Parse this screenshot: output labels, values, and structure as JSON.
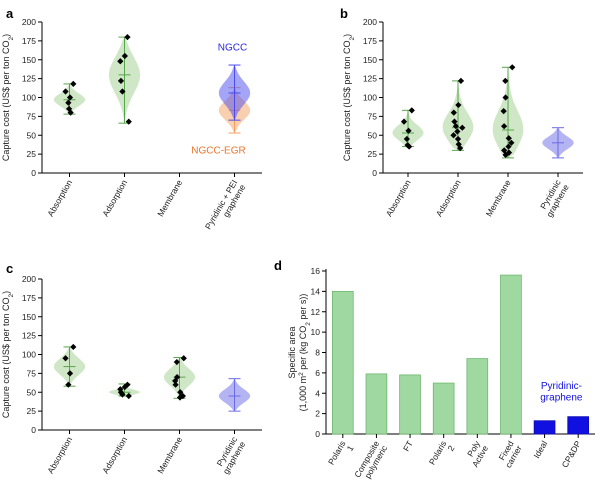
{
  "chart_data": [
    {
      "type": "violin",
      "panel_label": "a",
      "ylabel": "Capture cost (US$ per ton CO",
      "ylabel_sub": "2",
      "ylabel_end": ")",
      "ylim": [
        0,
        200
      ],
      "yticks": [
        0,
        25,
        50,
        75,
        100,
        125,
        150,
        175,
        200
      ],
      "categories": [
        "Absorption",
        "Adsorption",
        "Membrane",
        "Pyridinic + PEI graphene"
      ],
      "series": [
        {
          "category": "Absorption",
          "points": [
            118,
            108,
            100,
            93,
            85,
            80
          ],
          "median": 97,
          "min": 78,
          "max": 118,
          "color": "#9fd08f"
        },
        {
          "category": "Adsorption",
          "points": [
            180,
            155,
            148,
            122,
            108,
            68
          ],
          "median": 130,
          "min": 66,
          "max": 180,
          "color": "#9fd08f"
        },
        {
          "category": "Membrane",
          "points": [],
          "median": null,
          "min": null,
          "max": null,
          "color": "#9fd08f"
        },
        {
          "category": "Pyridinic + PEI graphene",
          "name": "NGCC-EGR",
          "points": [],
          "median": 83,
          "min": 53,
          "max": 113,
          "color": "#f2a060"
        },
        {
          "category": "Pyridinic + PEI graphene",
          "name": "NGCC",
          "points": [],
          "median": 106,
          "min": 70,
          "max": 143,
          "color": "#4b4bf0"
        }
      ],
      "annotations": [
        {
          "text": "NGCC",
          "color": "#2828e0"
        },
        {
          "text": "NGCC-EGR",
          "color": "#e8762c"
        }
      ]
    },
    {
      "type": "violin",
      "panel_label": "b",
      "ylabel": "Capture cost (US$ per ton CO",
      "ylabel_sub": "2",
      "ylabel_end": ")",
      "ylim": [
        0,
        200
      ],
      "yticks": [
        0,
        25,
        50,
        75,
        100,
        125,
        150,
        175,
        200
      ],
      "categories": [
        "Absorption",
        "Adsorption",
        "Membrane",
        "Pyridinic graphene"
      ],
      "series": [
        {
          "category": "Absorption",
          "points": [
            83,
            68,
            56,
            45,
            37,
            35
          ],
          "median": 53,
          "min": 35,
          "max": 83,
          "color": "#9fd08f"
        },
        {
          "category": "Adsorption",
          "points": [
            122,
            90,
            80,
            68,
            62,
            60,
            55,
            50,
            45,
            38,
            33
          ],
          "median": 60,
          "min": 30,
          "max": 122,
          "color": "#9fd08f"
        },
        {
          "category": "Membrane",
          "points": [
            140,
            122,
            100,
            82,
            62,
            46,
            40,
            35,
            30,
            27,
            24
          ],
          "median": 57,
          "min": 20,
          "max": 140,
          "color": "#9fd08f"
        },
        {
          "category": "Pyridinic graphene",
          "points": [],
          "median": 40,
          "min": 20,
          "max": 60,
          "color": "#6a6ae8"
        }
      ]
    },
    {
      "type": "violin",
      "panel_label": "c",
      "ylabel": "Capture cost (US$ per ton CO",
      "ylabel_sub": "2",
      "ylabel_end": ")",
      "ylim": [
        0,
        200
      ],
      "yticks": [
        0,
        25,
        50,
        75,
        100,
        125,
        150,
        175,
        200
      ],
      "categories": [
        "Absorption",
        "Adsorption",
        "Membrane",
        "Pyridinic graphene"
      ],
      "series": [
        {
          "category": "Absorption",
          "points": [
            110,
            95,
            75,
            60
          ],
          "median": 84,
          "min": 58,
          "max": 110,
          "color": "#9fd08f"
        },
        {
          "category": "Adsorption",
          "points": [
            60,
            57,
            54,
            50,
            47,
            45
          ],
          "median": 50,
          "min": 45,
          "max": 61,
          "color": "#9fd08f"
        },
        {
          "category": "Membrane",
          "points": [
            95,
            90,
            70,
            65,
            60,
            50,
            45,
            43
          ],
          "median": 70,
          "min": 42,
          "max": 96,
          "color": "#9fd08f"
        },
        {
          "category": "Pyridinic graphene",
          "points": [],
          "median": 45,
          "min": 25,
          "max": 68,
          "color": "#6a6ae8"
        }
      ]
    },
    {
      "type": "bar",
      "panel_label": "d",
      "ylabel": "Specific area",
      "ylabel2_pre": "(1,000 m",
      "ylabel2_sup": "2",
      "ylabel2_mid": " per (kg CO",
      "ylabel2_sub": "2",
      "ylabel2_end": " per s))",
      "ylim": [
        0,
        16
      ],
      "yticks": [
        0,
        2,
        4,
        6,
        8,
        10,
        12,
        14,
        16
      ],
      "categories": [
        "Polaris 1",
        "Composite polymeric",
        "FT",
        "Polaris 2",
        "Poly Active",
        "Fixed carrier",
        "Ideal",
        "CP&DP"
      ],
      "values": [
        14.0,
        5.9,
        5.8,
        5.0,
        7.4,
        15.6,
        1.3,
        1.7
      ],
      "colors": [
        "#9fd8a0",
        "#9fd8a0",
        "#9fd8a0",
        "#9fd8a0",
        "#9fd8a0",
        "#9fd8a0",
        "#1010e0",
        "#1010e0"
      ],
      "annotation": {
        "text": "Pyridinic-graphene",
        "color": "#1010e0"
      }
    }
  ]
}
